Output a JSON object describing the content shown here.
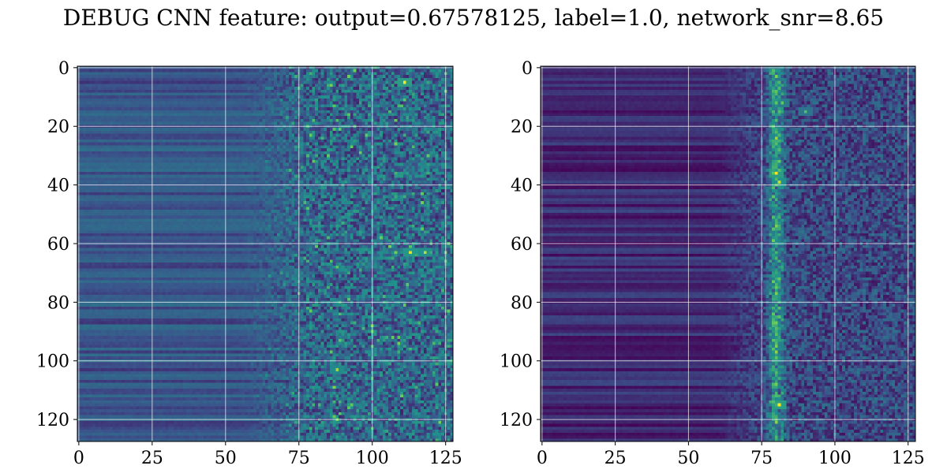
{
  "figure": {
    "title": "DEBUG CNN feature: output=0.67578125, label=1.0, network_snr=8.65"
  },
  "chart_data": [
    {
      "type": "heatmap",
      "title": "",
      "xlabel": "",
      "ylabel": "",
      "rows": 128,
      "cols": 128,
      "xlim": [
        0,
        127
      ],
      "ylim": [
        127,
        0
      ],
      "x_ticks": [
        "0",
        "25",
        "50",
        "75",
        "100",
        "125"
      ],
      "y_ticks": [
        "0",
        "20",
        "40",
        "60",
        "80",
        "100",
        "120"
      ],
      "grid": true,
      "colormap": "viridis",
      "colormap_stops": [
        "#440154",
        "#3b528b",
        "#21918c",
        "#5ec962",
        "#fde725"
      ],
      "pattern": "row-banded low values for columns 0-55, increasing noisy texture from column ~60 to 127 with bright speckles near rows 5, 44, 63, 68, 103",
      "hotspots": [
        {
          "row": 5,
          "col": 111,
          "value": 1.0
        },
        {
          "row": 63,
          "col": 113,
          "value": 0.95
        },
        {
          "row": 63,
          "col": 118,
          "value": 0.9
        },
        {
          "row": 103,
          "col": 88,
          "value": 0.85
        },
        {
          "row": 44,
          "col": 108,
          "value": 0.6
        }
      ]
    },
    {
      "type": "heatmap",
      "title": "",
      "xlabel": "",
      "ylabel": "",
      "rows": 128,
      "cols": 128,
      "xlim": [
        0,
        127
      ],
      "ylim": [
        127,
        0
      ],
      "x_ticks": [
        "0",
        "25",
        "50",
        "75",
        "100",
        "125"
      ],
      "y_ticks": [
        "0",
        "20",
        "40",
        "60",
        "80",
        "100",
        "120"
      ],
      "grid": true,
      "colormap": "viridis",
      "colormap_stops": [
        "#440154",
        "#3b528b",
        "#21918c",
        "#5ec962",
        "#fde725"
      ],
      "pattern": "dark row-banded region for columns 0-60, textured region from column ~70 with a bright vertical band near column 80",
      "hotspots": [
        {
          "row": 36,
          "col": 80,
          "value": 1.0
        },
        {
          "row": 115,
          "col": 81,
          "value": 1.0
        },
        {
          "row": 95,
          "col": 80,
          "value": 0.8
        },
        {
          "row": 24,
          "col": 80,
          "value": 0.85
        },
        {
          "row": 15,
          "col": 90,
          "value": 0.7
        },
        {
          "row": 12,
          "col": 82,
          "value": 0.75
        },
        {
          "row": 39,
          "col": 81,
          "value": 0.9
        }
      ]
    }
  ]
}
